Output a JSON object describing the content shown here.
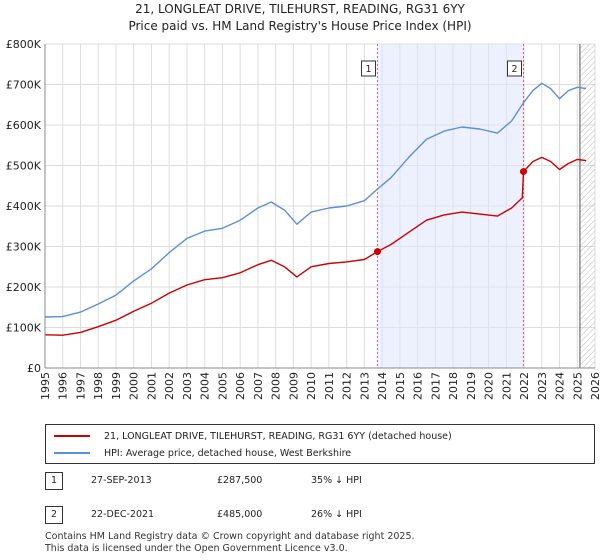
{
  "title_line1": "21, LONGLEAT DRIVE, TILEHURST, READING, RG31 6YY",
  "title_line2": "Price paid vs. HM Land Registry's House Price Index (HPI)",
  "chart_data": {
    "type": "line",
    "title": "21, LONGLEAT DRIVE, TILEHURST, READING, RG31 6YY — Price paid vs. HM Land Registry's House Price Index (HPI)",
    "xlim": [
      1995,
      2026
    ],
    "ylim": [
      0,
      800000
    ],
    "y_ticks": [
      0,
      100000,
      200000,
      300000,
      400000,
      500000,
      600000,
      700000,
      800000
    ],
    "y_tick_labels": [
      "£0",
      "£100K",
      "£200K",
      "£300K",
      "£400K",
      "£500K",
      "£600K",
      "£700K",
      "£800K"
    ],
    "x_ticks": [
      1995,
      1996,
      1997,
      1998,
      1999,
      2000,
      2001,
      2002,
      2003,
      2004,
      2005,
      2006,
      2007,
      2008,
      2009,
      2010,
      2011,
      2012,
      2013,
      2014,
      2015,
      2016,
      2017,
      2018,
      2019,
      2020,
      2021,
      2022,
      2023,
      2024,
      2025,
      2026
    ],
    "x_tick_labels": [
      "1995",
      "1996",
      "1997",
      "1998",
      "1999",
      "2000",
      "2001",
      "2002",
      "2003",
      "2004",
      "2005",
      "2006",
      "2007",
      "2008",
      "2009",
      "2010",
      "2011",
      "2012",
      "2013",
      "2014",
      "2015",
      "2016",
      "2017",
      "2018",
      "2019",
      "2020",
      "2021",
      "2022",
      "2023",
      "2024",
      "2025",
      "2026"
    ],
    "shaded_period": [
      2013.74,
      2021.97
    ],
    "series": [
      {
        "name": "21, LONGLEAT DRIVE, TILEHURST, READING, RG31 6YY (detached house)",
        "color": "#cc0000",
        "points": [
          [
            1995.0,
            82000
          ],
          [
            1996.0,
            81000
          ],
          [
            1997.0,
            88000
          ],
          [
            1998.0,
            102000
          ],
          [
            1999.0,
            118000
          ],
          [
            2000.0,
            140000
          ],
          [
            2001.0,
            160000
          ],
          [
            2002.0,
            185000
          ],
          [
            2003.0,
            205000
          ],
          [
            2004.0,
            218000
          ],
          [
            2005.0,
            223000
          ],
          [
            2006.0,
            235000
          ],
          [
            2007.0,
            255000
          ],
          [
            2007.75,
            266000
          ],
          [
            2008.5,
            250000
          ],
          [
            2009.2,
            225000
          ],
          [
            2010.0,
            250000
          ],
          [
            2011.0,
            258000
          ],
          [
            2012.0,
            262000
          ],
          [
            2013.0,
            268000
          ],
          [
            2013.74,
            287500
          ],
          [
            2014.5,
            305000
          ],
          [
            2015.5,
            335000
          ],
          [
            2016.5,
            365000
          ],
          [
            2017.5,
            378000
          ],
          [
            2018.5,
            385000
          ],
          [
            2019.5,
            380000
          ],
          [
            2020.5,
            375000
          ],
          [
            2021.3,
            395000
          ],
          [
            2021.9,
            420000
          ],
          [
            2021.97,
            485000
          ],
          [
            2022.5,
            510000
          ],
          [
            2023.0,
            520000
          ],
          [
            2023.5,
            510000
          ],
          [
            2024.0,
            490000
          ],
          [
            2024.5,
            505000
          ],
          [
            2025.0,
            515000
          ],
          [
            2025.5,
            512000
          ]
        ]
      },
      {
        "name": "HPI: Average price, detached house, West Berkshire",
        "color": "#5b8fd6",
        "points": [
          [
            1995.0,
            126000
          ],
          [
            1996.0,
            127000
          ],
          [
            1997.0,
            138000
          ],
          [
            1998.0,
            158000
          ],
          [
            1999.0,
            180000
          ],
          [
            2000.0,
            215000
          ],
          [
            2001.0,
            245000
          ],
          [
            2002.0,
            285000
          ],
          [
            2003.0,
            320000
          ],
          [
            2004.0,
            338000
          ],
          [
            2005.0,
            345000
          ],
          [
            2006.0,
            365000
          ],
          [
            2007.0,
            395000
          ],
          [
            2007.75,
            410000
          ],
          [
            2008.5,
            390000
          ],
          [
            2009.2,
            355000
          ],
          [
            2010.0,
            385000
          ],
          [
            2011.0,
            395000
          ],
          [
            2012.0,
            400000
          ],
          [
            2013.0,
            413000
          ],
          [
            2013.74,
            442000
          ],
          [
            2014.5,
            470000
          ],
          [
            2015.5,
            520000
          ],
          [
            2016.5,
            565000
          ],
          [
            2017.5,
            585000
          ],
          [
            2018.5,
            595000
          ],
          [
            2019.5,
            590000
          ],
          [
            2020.5,
            580000
          ],
          [
            2021.3,
            610000
          ],
          [
            2021.97,
            655000
          ],
          [
            2022.5,
            685000
          ],
          [
            2023.0,
            703000
          ],
          [
            2023.5,
            690000
          ],
          [
            2024.0,
            665000
          ],
          [
            2024.5,
            685000
          ],
          [
            2025.0,
            693000
          ],
          [
            2025.5,
            690000
          ]
        ]
      }
    ],
    "sales": [
      {
        "label": "1",
        "x": 2013.74,
        "value": 287500
      },
      {
        "label": "2",
        "x": 2021.97,
        "value": 485000
      }
    ],
    "forecast_start": 2025.15,
    "legend_position": "below"
  },
  "table": [
    {
      "num": "1",
      "date": "27-SEP-2013",
      "price": "£287,500",
      "hpi": "35% ↓ HPI"
    },
    {
      "num": "2",
      "date": "22-DEC-2021",
      "price": "£485,000",
      "hpi": "26% ↓ HPI"
    }
  ],
  "footer": {
    "line1": "Contains HM Land Registry data © Crown copyright and database right 2025.",
    "line2": "This data is licensed under the Open Government Licence v3.0."
  }
}
